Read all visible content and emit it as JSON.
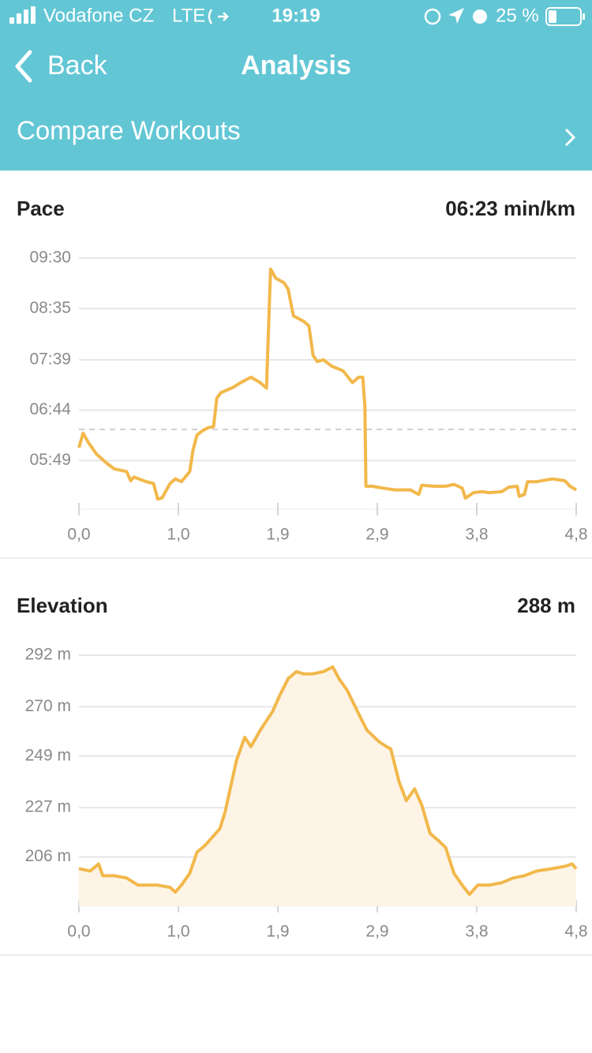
{
  "status_bar": {
    "carrier": "Vodafone CZ",
    "network": "LTE",
    "time": "19:19",
    "battery": "25 %"
  },
  "nav": {
    "back": "Back",
    "title": "Analysis"
  },
  "compare_link": "Compare Workouts",
  "chart_data": [
    {
      "type": "line",
      "title": "Pace",
      "subtitle": "06:23 min/km",
      "color": "#f2b84b",
      "grid": true,
      "reference_line": 383,
      "x": [
        0,
        0.04,
        0.09,
        0.17,
        0.27,
        0.34,
        0.46,
        0.5,
        0.53,
        0.65,
        0.72,
        0.76,
        0.8,
        0.88,
        0.93,
        0.99,
        1.07,
        1.1,
        1.14,
        1.2,
        1.25,
        1.3,
        1.33,
        1.37,
        1.49,
        1.56,
        1.66,
        1.75,
        1.81,
        1.85,
        1.9,
        1.98,
        2.02,
        2.07,
        2.17,
        2.22,
        2.26,
        2.3,
        2.36,
        2.44,
        2.55,
        2.64,
        2.7,
        2.74,
        2.76,
        2.77,
        2.83,
        2.93,
        3.05,
        3.2,
        3.28,
        3.31,
        3.43,
        3.54,
        3.62,
        3.7,
        3.73,
        3.81,
        3.89,
        3.96,
        4.08,
        4.15,
        4.23,
        4.25,
        4.3,
        4.33,
        4.42,
        4.57,
        4.69,
        4.74,
        4.8
      ],
      "values": [
        363,
        379,
        369,
        356,
        346,
        340,
        337,
        327,
        331,
        326,
        324,
        307,
        308,
        324,
        329,
        326,
        337,
        360,
        377,
        382,
        385,
        386,
        417,
        423,
        429,
        434,
        440,
        434,
        428,
        558,
        548,
        543,
        536,
        507,
        501,
        496,
        464,
        457,
        459,
        452,
        447,
        434,
        440,
        440,
        408,
        321,
        321,
        319,
        317,
        317,
        312,
        322,
        321,
        321,
        323,
        319,
        308,
        314,
        315,
        314,
        315,
        320,
        321,
        310,
        312,
        326,
        326,
        329,
        327,
        321,
        317
      ],
      "xlim": [
        0,
        4.8
      ],
      "xticks": [
        {
          "value": 0,
          "label": "0,0"
        },
        {
          "value": 0.96,
          "label": "1,0"
        },
        {
          "value": 1.92,
          "label": "1,9"
        },
        {
          "value": 2.88,
          "label": "2,9"
        },
        {
          "value": 3.84,
          "label": "3,8"
        },
        {
          "value": 4.8,
          "label": "4,8"
        }
      ],
      "ylim": [
        296,
        570
      ],
      "yticks": [
        {
          "value": 570,
          "label": "09:30"
        },
        {
          "value": 515,
          "label": "08:35"
        },
        {
          "value": 459,
          "label": "07:39"
        },
        {
          "value": 404,
          "label": "06:44"
        },
        {
          "value": 349,
          "label": "05:49"
        }
      ]
    },
    {
      "type": "area",
      "title": "Elevation",
      "subtitle": "288 m",
      "color": "#f2b84b",
      "fill": "#fdf4e6",
      "grid": true,
      "x": [
        0,
        0.11,
        0.19,
        0.23,
        0.34,
        0.46,
        0.57,
        0.69,
        0.76,
        0.88,
        0.93,
        0.99,
        1.07,
        1.14,
        1.22,
        1.3,
        1.36,
        1.41,
        1.46,
        1.52,
        1.6,
        1.66,
        1.75,
        1.87,
        1.94,
        2.02,
        2.1,
        2.17,
        2.25,
        2.36,
        2.45,
        2.51,
        2.59,
        2.7,
        2.78,
        2.9,
        2.97,
        3.01,
        3.09,
        3.16,
        3.24,
        3.31,
        3.39,
        3.47,
        3.54,
        3.62,
        3.7,
        3.77,
        3.85,
        3.96,
        4.08,
        4.19,
        4.3,
        4.42,
        4.57,
        4.69,
        4.76,
        4.8
      ],
      "values": [
        201,
        200,
        203,
        198,
        198,
        197,
        194,
        194,
        194,
        193,
        191,
        194,
        199,
        208,
        211,
        215,
        218,
        225,
        235,
        247,
        257,
        253,
        260,
        268,
        275,
        282,
        285,
        284,
        284,
        285,
        287,
        282,
        277,
        267,
        260,
        255,
        253,
        252,
        238,
        230,
        235,
        228,
        216,
        213,
        210,
        199,
        194,
        190,
        194,
        194,
        195,
        197,
        198,
        200,
        201,
        202,
        203,
        201
      ],
      "xlim": [
        0,
        4.8
      ],
      "xticks": [
        {
          "value": 0,
          "label": "0,0"
        },
        {
          "value": 0.96,
          "label": "1,0"
        },
        {
          "value": 1.92,
          "label": "1,9"
        },
        {
          "value": 2.88,
          "label": "2,9"
        },
        {
          "value": 3.84,
          "label": "3,8"
        },
        {
          "value": 4.8,
          "label": "4,8"
        }
      ],
      "ylim": [
        185,
        292
      ],
      "yticks": [
        {
          "value": 292,
          "label": "292 m"
        },
        {
          "value": 270,
          "label": "270 m"
        },
        {
          "value": 249,
          "label": "249 m"
        },
        {
          "value": 227,
          "label": "227 m"
        },
        {
          "value": 206,
          "label": "206 m"
        }
      ]
    }
  ]
}
